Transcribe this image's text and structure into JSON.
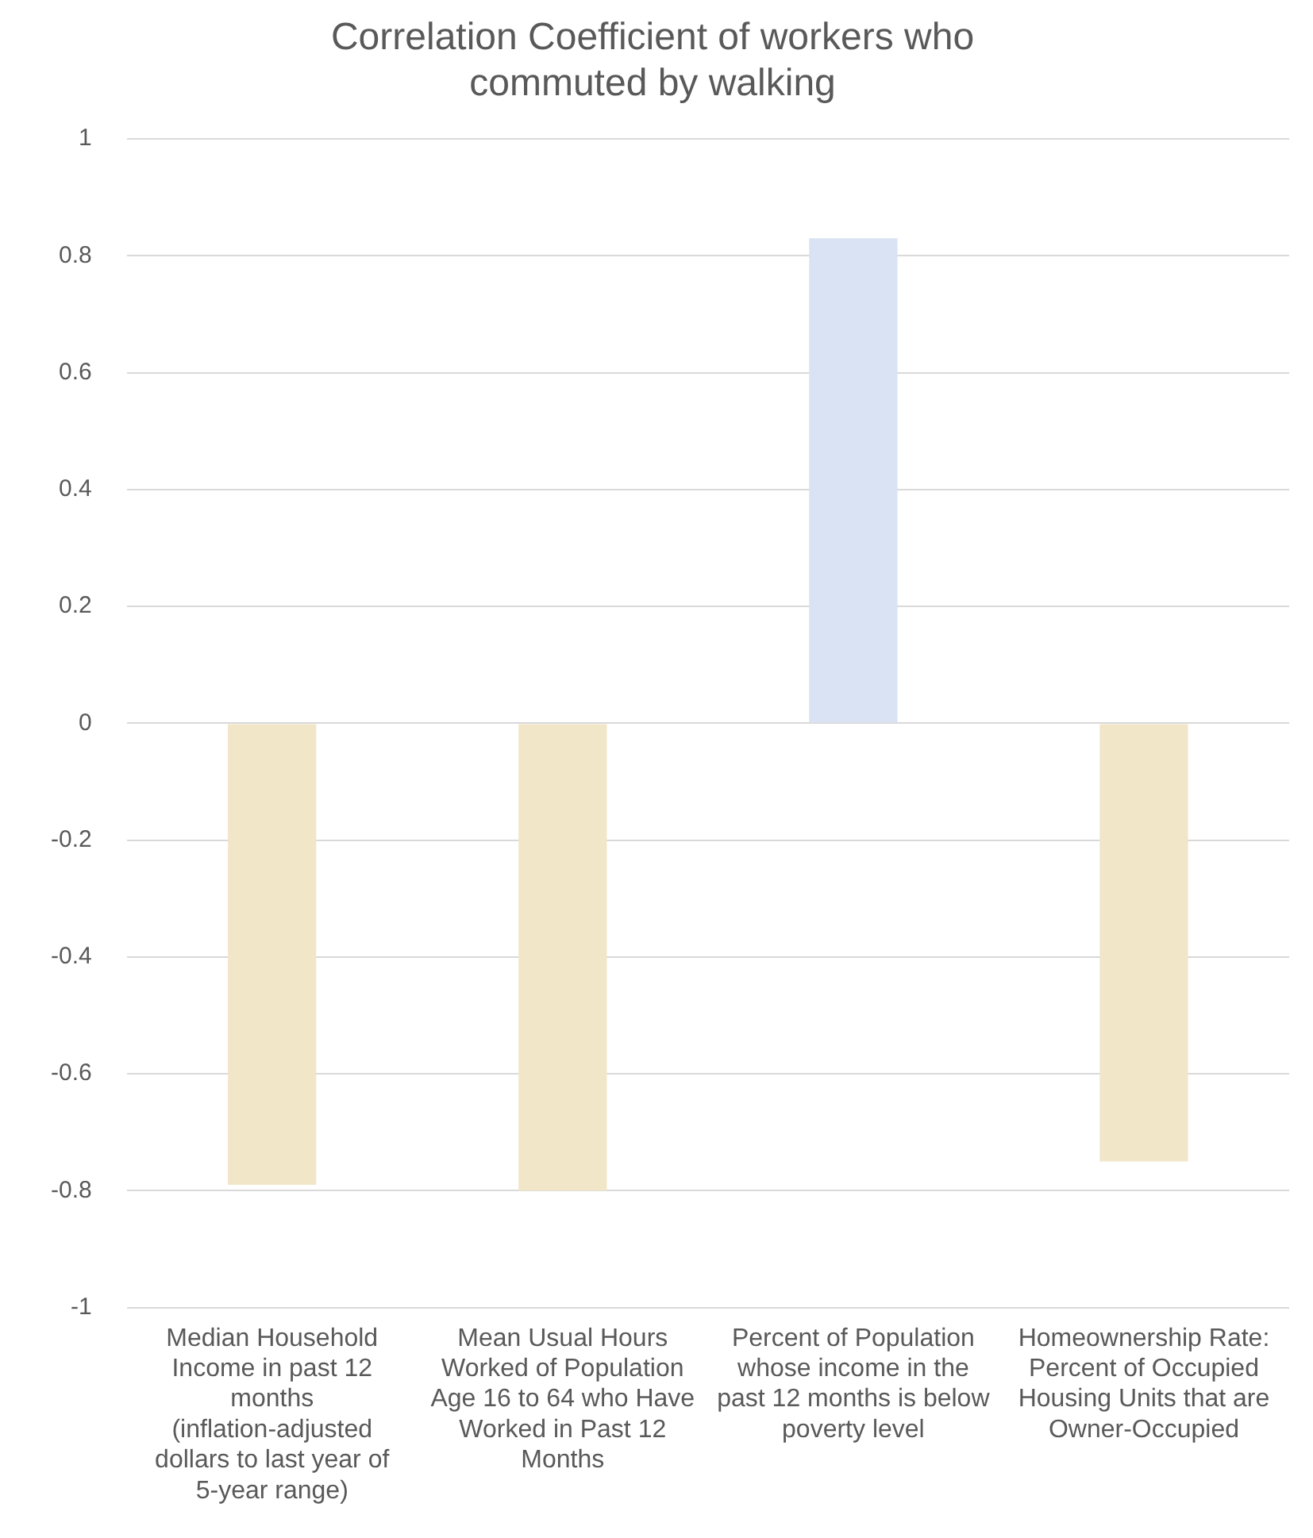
{
  "chart_data": {
    "type": "bar",
    "title": "Correlation Coefficient of workers who commuted by walking",
    "categories": [
      "Median Household Income in past 12 months (inflation-adjusted dollars to last year of 5-year range)",
      "Mean Usual Hours Worked of Population Age 16 to 64 who Have Worked in Past 12 Months",
      "Percent of Population whose income in the past 12 months is below poverty level",
      "Homeownership Rate: Percent of Occupied Housing Units that are Owner-Occupied"
    ],
    "values": [
      -0.79,
      -0.8,
      0.83,
      -0.75
    ],
    "colors": [
      "#f2e6c9",
      "#f2e6c9",
      "#dae3f3",
      "#f2e6c9"
    ],
    "ylim": [
      -1,
      1
    ],
    "yticks": [
      -1,
      -0.8,
      -0.6,
      -0.4,
      -0.2,
      0,
      0.2,
      0.4,
      0.6,
      0.8,
      1
    ],
    "grid": "y"
  }
}
